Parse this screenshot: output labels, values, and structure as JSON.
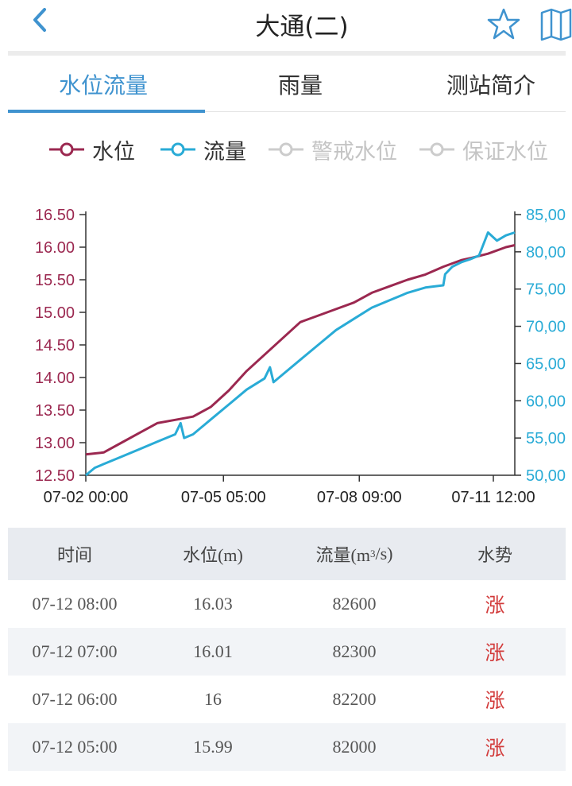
{
  "header": {
    "title": "大通(二)",
    "back_icon": "chevron-left-icon",
    "favorite_icon": "star-outline-icon",
    "map_icon": "map-icon",
    "accent_color": "#3f93cf"
  },
  "tabs": [
    {
      "label": "水位流量",
      "active": true
    },
    {
      "label": "雨量",
      "active": false
    },
    {
      "label": "测站简介",
      "active": false
    }
  ],
  "legend": [
    {
      "label": "水位",
      "color": "#9b2850",
      "enabled": true
    },
    {
      "label": "流量",
      "color": "#29abd6",
      "enabled": true
    },
    {
      "label": "警戒水位",
      "color": "#c8c8c8",
      "enabled": false
    },
    {
      "label": "保证水位",
      "color": "#c8c8c8",
      "enabled": false
    }
  ],
  "chart_data": {
    "type": "line",
    "title": "",
    "x_tick_labels": [
      "07-02 00:00",
      "07-05 05:00",
      "07-08 09:00",
      "07-11 12:00"
    ],
    "x_range_hours": [
      0,
      240
    ],
    "x_tick_hours": [
      0,
      77,
      153,
      228
    ],
    "y_left": {
      "ticks": [
        "16.50",
        "16.00",
        "15.50",
        "15.00",
        "14.50",
        "14.00",
        "13.50",
        "13.00",
        "12.50"
      ],
      "range": [
        12.5,
        16.5
      ],
      "color": "#9b2850"
    },
    "y_right": {
      "ticks": [
        "85,00",
        "80,00",
        "75,00",
        "70,00",
        "65,00",
        "60,00",
        "55,00",
        "50,00"
      ],
      "range": [
        50000,
        85000
      ],
      "color": "#29abd6"
    },
    "series": [
      {
        "name": "水位",
        "axis": "left",
        "color": "#9b2850",
        "x": [
          0,
          10,
          20,
          30,
          40,
          50,
          60,
          70,
          80,
          90,
          100,
          110,
          120,
          130,
          140,
          150,
          160,
          170,
          180,
          190,
          200,
          210,
          215,
          225,
          235,
          240
        ],
        "y": [
          12.82,
          12.85,
          13.0,
          13.15,
          13.3,
          13.35,
          13.4,
          13.55,
          13.8,
          14.1,
          14.35,
          14.6,
          14.85,
          14.95,
          15.05,
          15.15,
          15.3,
          15.4,
          15.5,
          15.58,
          15.7,
          15.8,
          15.83,
          15.9,
          16.0,
          16.03
        ]
      },
      {
        "name": "流量",
        "axis": "right",
        "color": "#29abd6",
        "x": [
          0,
          5,
          10,
          20,
          30,
          40,
          50,
          53,
          55,
          60,
          70,
          80,
          90,
          100,
          103,
          105,
          110,
          120,
          130,
          140,
          150,
          160,
          170,
          180,
          190,
          200,
          201,
          205,
          210,
          215,
          220,
          225,
          230,
          235,
          240
        ],
        "y": [
          50000,
          51000,
          51500,
          52500,
          53500,
          54500,
          55500,
          57000,
          55000,
          55500,
          57500,
          59500,
          61500,
          63000,
          64500,
          62500,
          63500,
          65500,
          67500,
          69500,
          71000,
          72500,
          73500,
          74500,
          75200,
          75500,
          77000,
          78000,
          78600,
          79000,
          79500,
          82600,
          81500,
          82200,
          82600
        ]
      }
    ]
  },
  "table": {
    "headers": [
      "时间",
      "水位(m)",
      "流量(m³/s)",
      "水势"
    ],
    "flow_header_base": "流量(m",
    "flow_header_sup": "3",
    "flow_header_tail": "/s)",
    "rows": [
      {
        "time": "07-12 08:00",
        "level": "16.03",
        "flow": "82600",
        "trend": "涨"
      },
      {
        "time": "07-12 07:00",
        "level": "16.01",
        "flow": "82300",
        "trend": "涨"
      },
      {
        "time": "07-12 06:00",
        "level": "16",
        "flow": "82200",
        "trend": "涨"
      },
      {
        "time": "07-12 05:00",
        "level": "15.99",
        "flow": "82000",
        "trend": "涨"
      }
    ],
    "trend_color": "#d23a3a"
  }
}
